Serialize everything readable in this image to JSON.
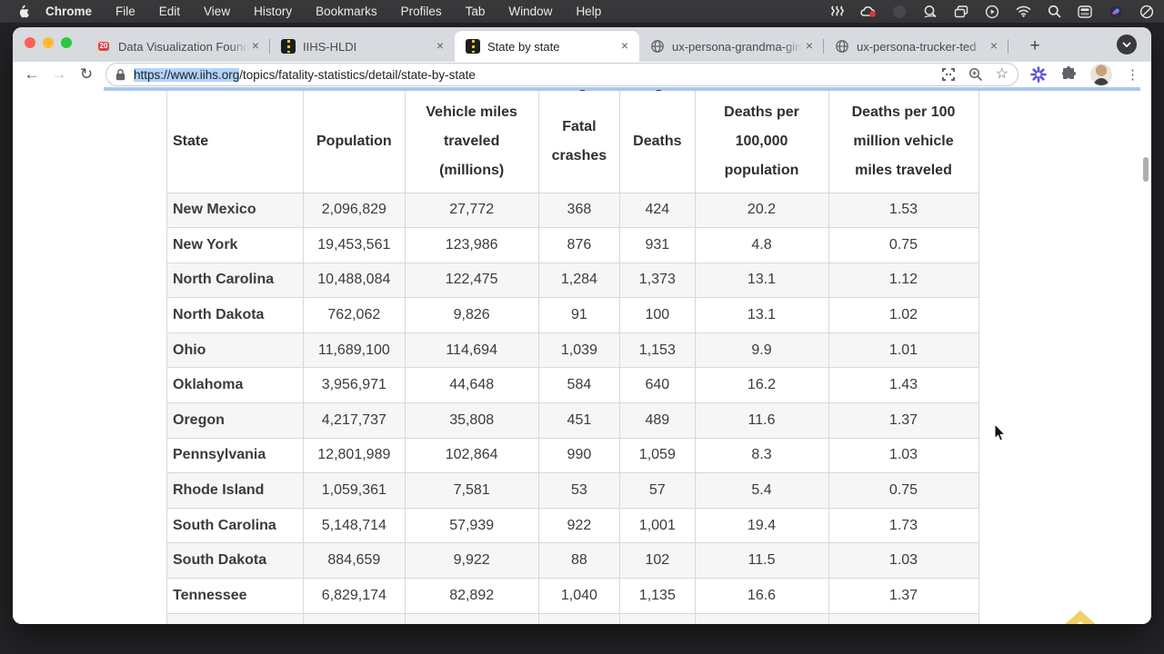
{
  "menubar": {
    "items": [
      "Chrome",
      "File",
      "Edit",
      "View",
      "History",
      "Bookmarks",
      "Profiles",
      "Tab",
      "Window",
      "Help"
    ],
    "status_icon_names": [
      "waves-icon",
      "cloud-notification-icon",
      "dimmed-circle-icon",
      "zoom-lens-icon",
      "windows-stack-icon",
      "play-circle-icon",
      "wifi-icon",
      "spotlight-search-icon",
      "control-center-icon",
      "color-app-icon",
      "do-not-disturb-icon"
    ]
  },
  "tabs": [
    {
      "title": "Data Visualization Founda",
      "icon": "calendar-20-icon",
      "badge": "20"
    },
    {
      "title": "IIHS-HLDI",
      "icon": "road-icon"
    },
    {
      "title": "State by state",
      "icon": "road-icon",
      "active": true
    },
    {
      "title": "ux-persona-grandma-gin",
      "icon": "globe-icon"
    },
    {
      "title": "ux-persona-trucker-ted",
      "icon": "globe-icon"
    }
  ],
  "tabstrip": {
    "close_label": "×",
    "new_tab_label": "+"
  },
  "toolbar": {
    "back_label": "←",
    "forward_label": "→",
    "reload_label": "↻",
    "url_selected": "https://www.iihs.org",
    "url_rest": "/topics/fatality-statistics/detail/state-by-state",
    "bookmark_star": "☆",
    "menu_kebab": "⋮"
  },
  "table": {
    "columns": [
      "State",
      "Population",
      "Vehicle miles traveled (millions)",
      "Fatal crashes",
      "Deaths",
      "Deaths per 100,000 population",
      "Deaths per 100 million vehicle miles traveled"
    ],
    "rows": [
      [
        "New Mexico",
        "2,096,829",
        "27,772",
        "368",
        "424",
        "20.2",
        "1.53"
      ],
      [
        "New York",
        "19,453,561",
        "123,986",
        "876",
        "931",
        "4.8",
        "0.75"
      ],
      [
        "North Carolina",
        "10,488,084",
        "122,475",
        "1,284",
        "1,373",
        "13.1",
        "1.12"
      ],
      [
        "North Dakota",
        "762,062",
        "9,826",
        "91",
        "100",
        "13.1",
        "1.02"
      ],
      [
        "Ohio",
        "11,689,100",
        "114,694",
        "1,039",
        "1,153",
        "9.9",
        "1.01"
      ],
      [
        "Oklahoma",
        "3,956,971",
        "44,648",
        "584",
        "640",
        "16.2",
        "1.43"
      ],
      [
        "Oregon",
        "4,217,737",
        "35,808",
        "451",
        "489",
        "11.6",
        "1.37"
      ],
      [
        "Pennsylvania",
        "12,801,989",
        "102,864",
        "990",
        "1,059",
        "8.3",
        "1.03"
      ],
      [
        "Rhode Island",
        "1,059,361",
        "7,581",
        "53",
        "57",
        "5.4",
        "0.75"
      ],
      [
        "South Carolina",
        "5,148,714",
        "57,939",
        "922",
        "1,001",
        "19.4",
        "1.73"
      ],
      [
        "South Dakota",
        "884,659",
        "9,922",
        "88",
        "102",
        "11.5",
        "1.03"
      ],
      [
        "Tennessee",
        "6,829,174",
        "82,892",
        "1,040",
        "1,135",
        "16.6",
        "1.37"
      ]
    ]
  },
  "colors": {
    "menubar_bg": "#39393b",
    "tabstrip_bg": "#d7dade",
    "active_tab_bg": "#ffffff",
    "url_selection": "#b1d3fb",
    "table_stripe": "#f6f6f6",
    "table_border": "#d8d8d8",
    "scrolltop_gold": "#eac549",
    "traffic_red": "#ff5f57",
    "traffic_yellow": "#febc2e",
    "traffic_green": "#28c840"
  }
}
